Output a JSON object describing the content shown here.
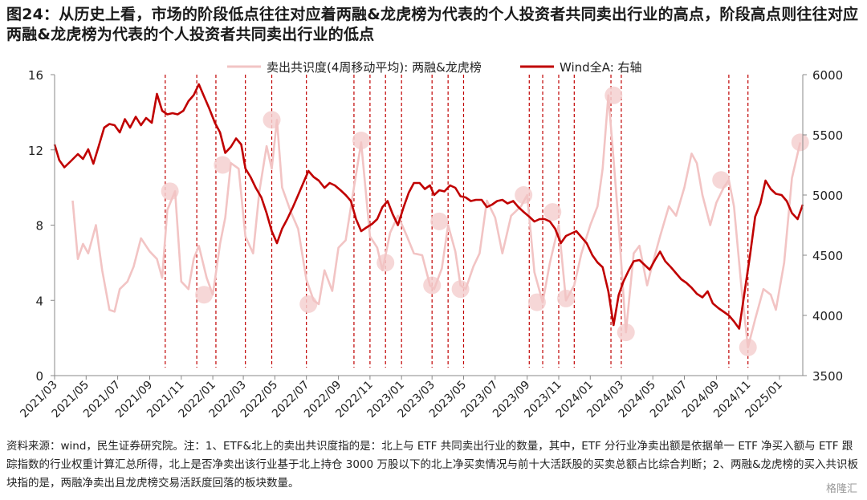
{
  "title": "图24：从历史上看，市场的阶段低点往往对应着两融&龙虎榜为代表的个人投资者共同卖出行业的高点，阶段高点则往往对应两融&龙虎榜为代表的个人投资者共同卖出行业的低点",
  "source_note": "资料来源：wind，民生证券研究院。注：1、ETF&北上的卖出共识度指的是：北上与 ETF 共同卖出行业的数量，其中，ETF 分行业净卖出额是依据单一 ETF 净买入额与 ETF 跟踪指数的行业权重计算汇总所得，北上是否净卖出该行业基于北上持仓 3000 万股以下的北上净买卖情况与前十大活跃股的买卖总额占比综合判断；2、两融&龙虎榜的买入共识板块指的是，两融净卖出且龙虎榜交易活跃度回落的板块数量。",
  "watermark": "格隆汇",
  "colors": {
    "consensus": "#f2c4c4",
    "wind": "#c00000",
    "vline": "#c00000",
    "marker": "#f5d0d0"
  },
  "chart_data": {
    "type": "line",
    "legend": {
      "position": "top-center"
    },
    "x_ticks": [
      "2021/03",
      "2021/05",
      "2021/07",
      "2021/09",
      "2021/11",
      "2022/01",
      "2022/03",
      "2022/05",
      "2022/07",
      "2022/09",
      "2022/11",
      "2023/01",
      "2023/03",
      "2023/05",
      "2023/07",
      "2023/09",
      "2023/11",
      "2024/01",
      "2024/03",
      "2024/05",
      "2024/07",
      "2024/09",
      "2024/11",
      "2025/01"
    ],
    "x_range": [
      "2021-03-01",
      "2025-02-15"
    ],
    "y_left": {
      "range": [
        0,
        16
      ],
      "ticks": [
        0,
        4,
        8,
        12,
        16
      ]
    },
    "y_right": {
      "range": [
        3500,
        6000
      ],
      "ticks": [
        3500,
        4000,
        4500,
        5000,
        5500,
        6000
      ]
    },
    "series": [
      {
        "name": "卖出共识度(4周移动平均): 两融&龙虎榜",
        "axis": "left",
        "x": [
          "2021-04-05",
          "2021-04-15",
          "2021-04-25",
          "2021-05-05",
          "2021-05-20",
          "2021-06-01",
          "2021-06-15",
          "2021-06-25",
          "2021-07-05",
          "2021-07-20",
          "2021-08-01",
          "2021-08-15",
          "2021-09-01",
          "2021-09-15",
          "2021-09-25",
          "2021-10-05",
          "2021-10-20",
          "2021-11-01",
          "2021-11-15",
          "2021-11-25",
          "2021-12-05",
          "2021-12-20",
          "2022-01-01",
          "2022-01-15",
          "2022-01-25",
          "2022-02-05",
          "2022-02-20",
          "2022-03-05",
          "2022-03-20",
          "2022-04-01",
          "2022-04-15",
          "2022-04-25",
          "2022-05-05",
          "2022-05-15",
          "2022-06-01",
          "2022-06-15",
          "2022-07-01",
          "2022-07-15",
          "2022-07-25",
          "2022-08-05",
          "2022-08-20",
          "2022-09-01",
          "2022-09-15",
          "2022-10-01",
          "2022-10-15",
          "2022-11-01",
          "2022-11-15",
          "2022-11-25",
          "2022-12-10",
          "2022-12-25",
          "2023-01-10",
          "2023-01-25",
          "2023-02-10",
          "2023-02-25",
          "2023-03-05",
          "2023-03-20",
          "2023-04-01",
          "2023-04-15",
          "2023-04-25",
          "2023-05-05",
          "2023-05-20",
          "2023-06-01",
          "2023-06-15",
          "2023-07-01",
          "2023-07-15",
          "2023-08-01",
          "2023-08-20",
          "2023-09-01",
          "2023-09-15",
          "2023-10-01",
          "2023-10-15",
          "2023-11-01",
          "2023-11-15",
          "2023-12-01",
          "2023-12-15",
          "2024-01-01",
          "2024-01-15",
          "2024-01-25",
          "2024-02-05",
          "2024-02-15",
          "2024-02-25",
          "2024-03-10",
          "2024-03-25",
          "2024-04-05",
          "2024-04-20",
          "2024-05-01",
          "2024-05-15",
          "2024-06-01",
          "2024-06-15",
          "2024-07-01",
          "2024-07-15",
          "2024-07-25",
          "2024-08-05",
          "2024-08-20",
          "2024-09-01",
          "2024-09-15",
          "2024-09-25",
          "2024-10-05",
          "2024-10-20",
          "2024-11-01",
          "2024-11-15",
          "2024-12-01",
          "2024-12-15",
          "2024-12-25",
          "2025-01-10",
          "2025-01-25",
          "2025-02-10"
        ],
        "values": [
          9.3,
          6.2,
          7.0,
          6.5,
          8.0,
          5.6,
          3.5,
          3.4,
          4.6,
          5.0,
          5.8,
          7.3,
          6.6,
          6.2,
          5.2,
          8.8,
          9.8,
          5.0,
          4.6,
          6.2,
          6.9,
          5.2,
          4.3,
          7.0,
          8.4,
          11.3,
          11.0,
          7.4,
          6.5,
          9.8,
          12.2,
          11.0,
          13.6,
          10.0,
          8.7,
          7.8,
          5.1,
          4.0,
          3.8,
          5.6,
          4.5,
          6.8,
          7.2,
          10.0,
          12.4,
          7.4,
          6.8,
          5.6,
          7.6,
          8.5,
          7.5,
          6.5,
          6.4,
          4.8,
          4.6,
          5.7,
          8.0,
          6.6,
          4.8,
          4.6,
          5.8,
          6.5,
          9.3,
          8.4,
          6.5,
          8.5,
          9.0,
          9.6,
          5.5,
          3.9,
          6.0,
          8.0,
          4.0,
          4.8,
          6.5,
          8.0,
          9.0,
          11.0,
          14.9,
          11.5,
          8.0,
          2.3,
          6.5,
          6.9,
          4.8,
          6.0,
          7.4,
          9.0,
          8.5,
          10.0,
          11.8,
          11.3,
          9.6,
          8.0,
          9.2,
          10.0,
          10.4,
          9.0,
          4.5,
          1.5,
          3.0,
          4.6,
          4.3,
          3.5,
          6.0,
          10.5,
          12.4
        ]
      },
      {
        "name": "Wind全A: 右轴",
        "axis": "right",
        "x": [
          "2021-03-01",
          "2021-03-10",
          "2021-03-20",
          "2021-04-01",
          "2021-04-15",
          "2021-04-25",
          "2021-05-05",
          "2021-05-15",
          "2021-05-25",
          "2021-06-05",
          "2021-06-15",
          "2021-06-25",
          "2021-07-05",
          "2021-07-15",
          "2021-07-25",
          "2021-08-05",
          "2021-08-15",
          "2021-08-25",
          "2021-09-05",
          "2021-09-15",
          "2021-09-25",
          "2021-10-05",
          "2021-10-15",
          "2021-10-25",
          "2021-11-05",
          "2021-11-15",
          "2021-11-25",
          "2021-12-05",
          "2021-12-15",
          "2021-12-25",
          "2022-01-05",
          "2022-01-15",
          "2022-01-25",
          "2022-02-05",
          "2022-02-15",
          "2022-02-25",
          "2022-03-05",
          "2022-03-15",
          "2022-03-25",
          "2022-04-05",
          "2022-04-15",
          "2022-04-25",
          "2022-05-05",
          "2022-05-15",
          "2022-05-25",
          "2022-06-05",
          "2022-06-15",
          "2022-06-25",
          "2022-07-05",
          "2022-07-15",
          "2022-07-25",
          "2022-08-05",
          "2022-08-15",
          "2022-08-25",
          "2022-09-05",
          "2022-09-15",
          "2022-09-25",
          "2022-10-05",
          "2022-10-15",
          "2022-10-25",
          "2022-11-05",
          "2022-11-15",
          "2022-11-25",
          "2022-12-05",
          "2022-12-15",
          "2022-12-25",
          "2023-01-05",
          "2023-01-15",
          "2023-01-25",
          "2023-02-05",
          "2023-02-15",
          "2023-02-25",
          "2023-03-05",
          "2023-03-15",
          "2023-03-25",
          "2023-04-05",
          "2023-04-15",
          "2023-04-25",
          "2023-05-05",
          "2023-05-15",
          "2023-05-25",
          "2023-06-05",
          "2023-06-15",
          "2023-06-25",
          "2023-07-05",
          "2023-07-15",
          "2023-07-25",
          "2023-08-05",
          "2023-08-15",
          "2023-08-25",
          "2023-09-05",
          "2023-09-15",
          "2023-09-25",
          "2023-10-05",
          "2023-10-15",
          "2023-10-25",
          "2023-11-05",
          "2023-11-15",
          "2023-11-25",
          "2023-12-05",
          "2023-12-15",
          "2023-12-25",
          "2024-01-05",
          "2024-01-15",
          "2024-01-25",
          "2024-02-05",
          "2024-02-15",
          "2024-02-25",
          "2024-03-05",
          "2024-03-15",
          "2024-03-25",
          "2024-04-05",
          "2024-04-15",
          "2024-04-25",
          "2024-05-05",
          "2024-05-15",
          "2024-05-25",
          "2024-06-05",
          "2024-06-15",
          "2024-06-25",
          "2024-07-05",
          "2024-07-15",
          "2024-07-25",
          "2024-08-05",
          "2024-08-15",
          "2024-08-25",
          "2024-09-05",
          "2024-09-15",
          "2024-09-25",
          "2024-10-05",
          "2024-10-15",
          "2024-10-25",
          "2024-11-05",
          "2024-11-15",
          "2024-11-25",
          "2024-12-05",
          "2024-12-15",
          "2024-12-25",
          "2025-01-05",
          "2025-01-15",
          "2025-01-25",
          "2025-02-05",
          "2025-02-15"
        ],
        "values": [
          5420,
          5290,
          5230,
          5280,
          5340,
          5300,
          5380,
          5260,
          5400,
          5560,
          5590,
          5580,
          5520,
          5630,
          5560,
          5650,
          5580,
          5640,
          5600,
          5840,
          5700,
          5670,
          5680,
          5670,
          5700,
          5780,
          5830,
          5920,
          5820,
          5720,
          5600,
          5520,
          5350,
          5400,
          5470,
          5420,
          5220,
          5150,
          5060,
          4980,
          4850,
          4700,
          4600,
          4720,
          4800,
          4900,
          5000,
          5100,
          5200,
          5150,
          5120,
          5060,
          5100,
          5080,
          5040,
          5000,
          4950,
          4800,
          4700,
          4730,
          4760,
          4800,
          4900,
          4950,
          4840,
          4750,
          4900,
          5020,
          5100,
          5100,
          5050,
          5080,
          5000,
          5040,
          5030,
          5080,
          5060,
          4990,
          4980,
          4950,
          4960,
          4960,
          4900,
          4920,
          4950,
          4960,
          4930,
          4950,
          4900,
          4860,
          4820,
          4780,
          4800,
          4800,
          4780,
          4720,
          4600,
          4660,
          4680,
          4700,
          4650,
          4600,
          4500,
          4440,
          4400,
          4200,
          3920,
          4170,
          4280,
          4370,
          4450,
          4460,
          4420,
          4380,
          4460,
          4530,
          4450,
          4400,
          4350,
          4300,
          4270,
          4230,
          4180,
          4150,
          4200,
          4100,
          4060,
          4030,
          4000,
          3950,
          3890,
          4180,
          4500,
          4820,
          4930,
          5120,
          5050,
          5010,
          5000,
          4950,
          4850,
          4800,
          4920
        ]
      }
    ],
    "event_dates": [
      "2021-10-01",
      "2021-12-01",
      "2022-01-07",
      "2022-03-05",
      "2022-04-25",
      "2022-07-01",
      "2022-10-01",
      "2022-11-01",
      "2022-12-01",
      "2023-01-01",
      "2023-03-01",
      "2023-04-01",
      "2023-05-01",
      "2023-09-05",
      "2023-10-01",
      "2023-11-01",
      "2023-12-01",
      "2024-02-10",
      "2024-03-01",
      "2024-09-25",
      "2024-11-01"
    ],
    "highlights": [
      {
        "x": "2021-10-10",
        "y": 9.8
      },
      {
        "x": "2021-12-15",
        "y": 4.3
      },
      {
        "x": "2022-01-20",
        "y": 11.2
      },
      {
        "x": "2022-04-25",
        "y": 13.6
      },
      {
        "x": "2022-07-05",
        "y": 3.8
      },
      {
        "x": "2022-10-15",
        "y": 12.5
      },
      {
        "x": "2022-12-01",
        "y": 6.0
      },
      {
        "x": "2023-03-01",
        "y": 4.8
      },
      {
        "x": "2023-03-15",
        "y": 8.2
      },
      {
        "x": "2023-04-25",
        "y": 4.6
      },
      {
        "x": "2023-08-25",
        "y": 9.6
      },
      {
        "x": "2023-09-20",
        "y": 3.9
      },
      {
        "x": "2023-10-20",
        "y": 8.7
      },
      {
        "x": "2023-11-15",
        "y": 4.1
      },
      {
        "x": "2024-02-15",
        "y": 14.9
      },
      {
        "x": "2024-03-10",
        "y": 2.3
      },
      {
        "x": "2024-09-10",
        "y": 10.4
      },
      {
        "x": "2024-11-01",
        "y": 1.5
      },
      {
        "x": "2025-02-10",
        "y": 12.4
      }
    ]
  }
}
